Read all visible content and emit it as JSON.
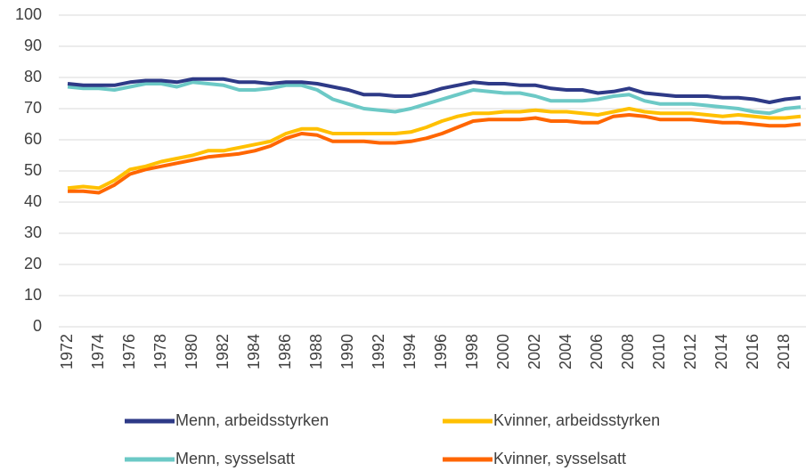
{
  "chart_data": {
    "type": "line",
    "categories": [
      "1972",
      null,
      "1974",
      null,
      "1976",
      null,
      "1978",
      null,
      "1980",
      null,
      "1982",
      null,
      "1984",
      null,
      "1986",
      null,
      "1988",
      null,
      "1990",
      null,
      "1992",
      null,
      "1994",
      null,
      "1996",
      null,
      "1998",
      null,
      "2000",
      null,
      "2002",
      null,
      "2004",
      null,
      "2006",
      null,
      "2008",
      null,
      "2010",
      null,
      "2012",
      null,
      "2014",
      null,
      "2016",
      null,
      "2018",
      null
    ],
    "series": [
      {
        "name": "Menn, arbeidsstyrken",
        "color": "#2e3a87",
        "values": [
          78,
          77.5,
          77.5,
          77.5,
          78.5,
          79,
          79,
          78.5,
          79.5,
          79.5,
          79.5,
          78.5,
          78.5,
          78,
          78.5,
          78.5,
          78,
          77,
          76,
          74.5,
          74.5,
          74,
          74,
          75,
          76.5,
          77.5,
          78.5,
          78,
          78,
          77.5,
          77.5,
          76.5,
          76,
          76,
          75,
          75.5,
          76.5,
          75,
          74.5,
          74,
          74,
          74,
          73.5,
          73.5,
          73,
          72,
          73,
          73.5
        ]
      },
      {
        "name": "Kvinner, arbeidsstyrken",
        "color": "#ffc000",
        "values": [
          44.5,
          45,
          44.5,
          47,
          50.5,
          51.5,
          53,
          54,
          55,
          56.5,
          56.5,
          57.5,
          58.5,
          59.5,
          62,
          63.5,
          63.5,
          62,
          62,
          62,
          62,
          62,
          62.5,
          64,
          66,
          67.5,
          68.5,
          68.5,
          69,
          69,
          69.5,
          69,
          69,
          68.5,
          68,
          69,
          70,
          69,
          68.5,
          68.5,
          68.5,
          68,
          67.5,
          68,
          67.5,
          67,
          67,
          67.5
        ]
      },
      {
        "name": "Menn, sysselsatt",
        "color": "#6cc9c6",
        "values": [
          77,
          76.5,
          76.5,
          76,
          77,
          78,
          78,
          77,
          78.5,
          78,
          77.5,
          76,
          76,
          76.5,
          77.5,
          77.5,
          76,
          73,
          71.5,
          70,
          69.5,
          69,
          70,
          71.5,
          73,
          74.5,
          76,
          75.5,
          75,
          75,
          74,
          72.5,
          72.5,
          72.5,
          73,
          74,
          74.5,
          72.5,
          71.5,
          71.5,
          71.5,
          71,
          70.5,
          70,
          69,
          68.5,
          70,
          70.5
        ]
      },
      {
        "name": "Kvinner, sysselsatt",
        "color": "#ff6600",
        "values": [
          43.5,
          43.5,
          43,
          45.5,
          49,
          50.5,
          51.5,
          52.5,
          53.5,
          54.5,
          55,
          55.5,
          56.5,
          58,
          60.5,
          62,
          61.5,
          59.5,
          59.5,
          59.5,
          59,
          59,
          59.5,
          60.5,
          62,
          64,
          66,
          66.5,
          66.5,
          66.5,
          67,
          66,
          66,
          65.5,
          65.5,
          67.5,
          68,
          67.5,
          66.5,
          66.5,
          66.5,
          66,
          65.5,
          65.5,
          65,
          64.5,
          64.5,
          65
        ]
      }
    ],
    "ylim": [
      0,
      100
    ],
    "yticks": [
      0,
      10,
      20,
      30,
      40,
      50,
      60,
      70,
      80,
      90,
      100
    ],
    "grid": true,
    "legend": "bottom"
  }
}
